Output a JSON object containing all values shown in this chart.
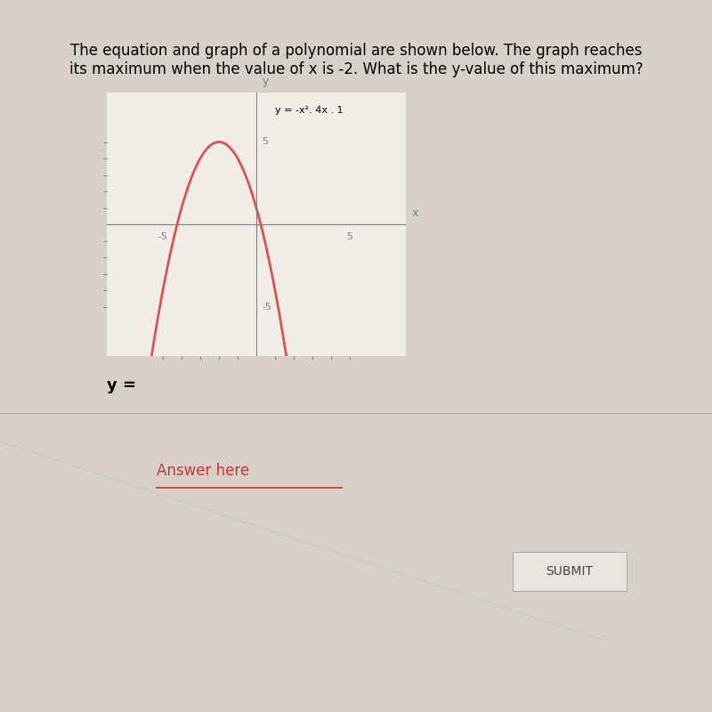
{
  "title_text": "The equation and graph of a polynomial are shown below. The graph reaches\nits maximum when the value of x is -2. What is the y-value of this maximum?",
  "equation_label": "y = -x². 4x . 1",
  "curve_color": "#e05050",
  "background_color": "#d6d0c8",
  "graph_bg": "#f0ece6",
  "xlim": [
    -8,
    8
  ],
  "ylim": [
    -8,
    8
  ],
  "x_tick_label_pos": [
    -5,
    5
  ],
  "y_tick_label_pos": [
    5,
    -5
  ],
  "answer_label": "y =",
  "answer_here": "Answer here",
  "submit_label": "SUBMIT",
  "title_fontsize": 12,
  "label_fontsize": 11
}
